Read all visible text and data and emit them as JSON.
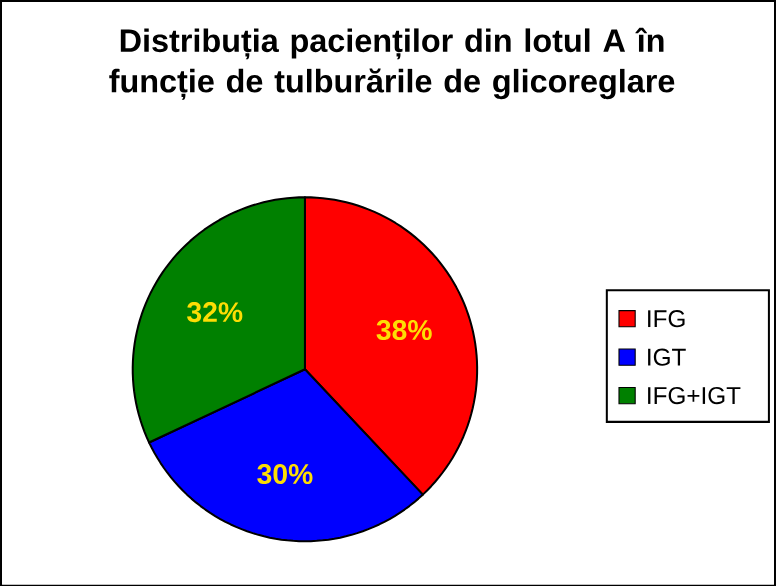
{
  "chart_data": {
    "type": "pie",
    "title": "Distribuția pacienților din lotul A în funcție de tulburările de glicoreglare",
    "categories": [
      "IFG",
      "IGT",
      "IFG+IGT"
    ],
    "values": [
      38,
      30,
      32
    ],
    "colors": [
      "#ff0000",
      "#0000ff",
      "#008000"
    ],
    "value_labels": [
      "38%",
      "30%",
      "32%"
    ],
    "legend": "right"
  }
}
